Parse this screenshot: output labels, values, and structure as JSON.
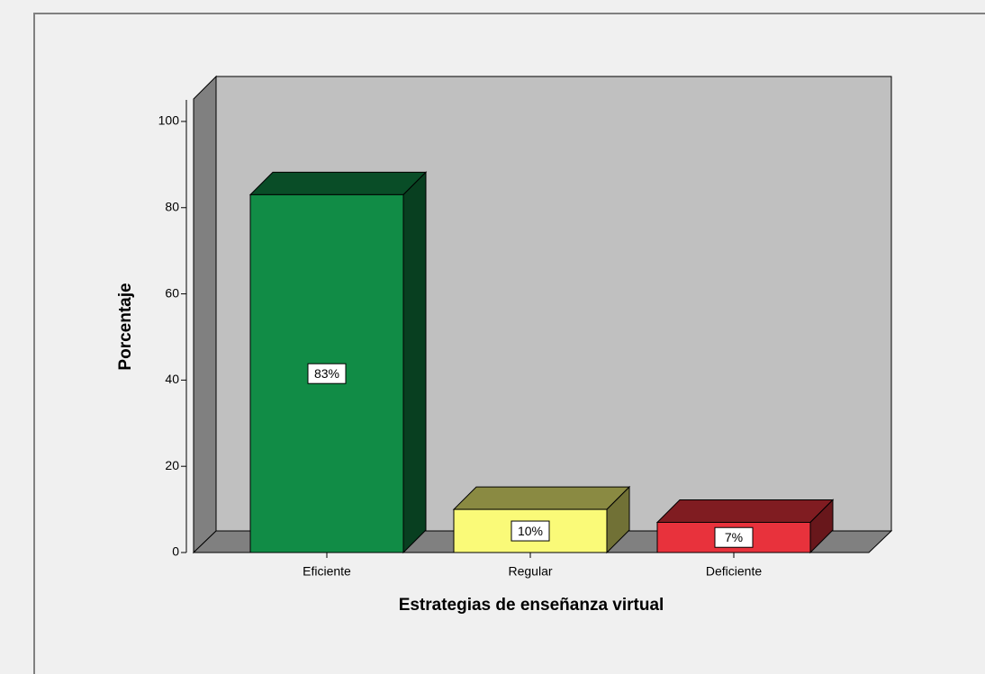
{
  "chart_data": {
    "type": "bar3d",
    "categories": [
      "Eficiente",
      "Regular",
      "Deficiente"
    ],
    "values": [
      83,
      10,
      7
    ],
    "value_labels": [
      "83%",
      "10%",
      "7%"
    ],
    "colors": [
      "#118c46",
      "#fafa78",
      "#e8323c"
    ],
    "ylim": [
      0,
      105
    ],
    "yticks": [
      0,
      20,
      40,
      60,
      80,
      100
    ],
    "x_label": "Estrategias de enseñanza virtual",
    "y_label": "Porcentaje"
  }
}
